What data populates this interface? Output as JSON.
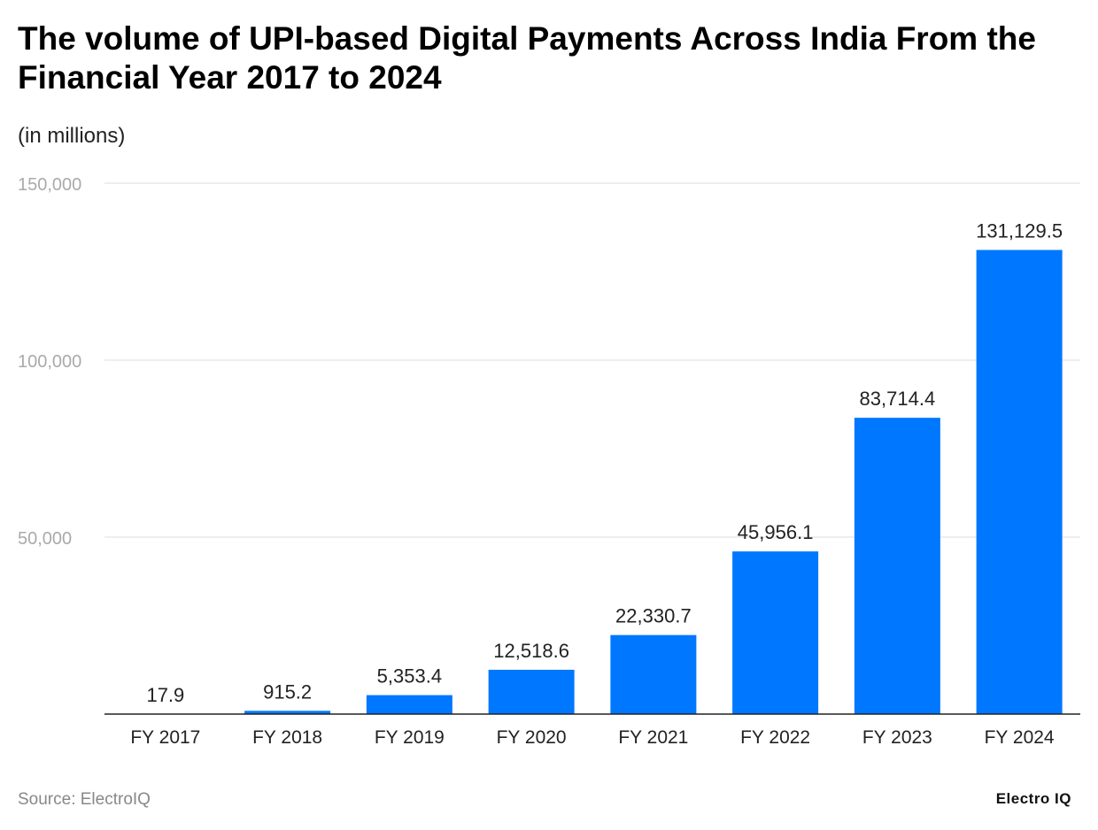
{
  "chart_data": {
    "type": "bar",
    "title": "The volume of UPI-based Digital Payments Across India From the Financial Year 2017 to 2024",
    "subtitle": "(in millions)",
    "categories": [
      "FY 2017",
      "FY 2018",
      "FY 2019",
      "FY 2020",
      "FY 2021",
      "FY 2022",
      "FY 2023",
      "FY 2024"
    ],
    "values": [
      17.9,
      915.2,
      5353.4,
      12518.6,
      22330.7,
      45956.1,
      83714.4,
      131129.5
    ],
    "data_labels": [
      "17.9",
      "915.2",
      "5,353.4",
      "12,518.6",
      "22,330.7",
      "45,956.1",
      "83,714.4",
      "131,129.5"
    ],
    "ylim": [
      0,
      150000
    ],
    "yticks": [
      50000,
      100000,
      150000
    ],
    "ytick_labels": [
      "50,000",
      "100,000",
      "150,000"
    ],
    "xlabel": "",
    "ylabel": "",
    "grid": true,
    "bar_color": "#0077ff"
  },
  "footer": {
    "source": "Source: ElectroIQ",
    "logo": "Electro IQ"
  }
}
